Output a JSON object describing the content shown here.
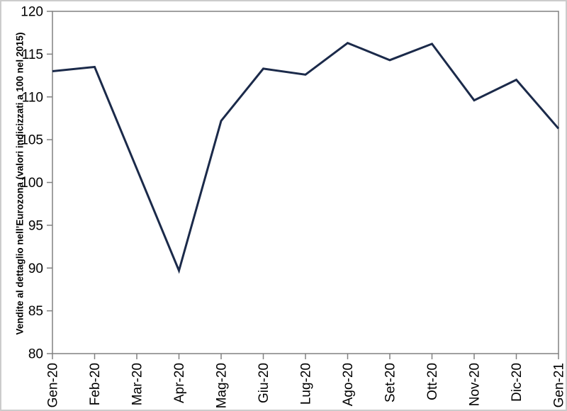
{
  "chart_data": {
    "type": "line",
    "title": "",
    "xlabel": "",
    "ylabel": "Vendite al dettaglio nell’Eurozona (valori indicizzati a 100 nel 2015)",
    "categories": [
      "Gen-20",
      "Feb-20",
      "Mar-20",
      "Apr-20",
      "Mag-20",
      "Giu-20",
      "Lug-20",
      "Ago-20",
      "Set-20",
      "Ott-20",
      "Nov-20",
      "Dic-20",
      "Gen-21"
    ],
    "values": [
      113.0,
      113.5,
      101.6,
      89.7,
      107.2,
      113.3,
      112.6,
      116.3,
      114.3,
      116.2,
      109.6,
      112.0,
      106.3
    ],
    "ylim": [
      80,
      120
    ],
    "yticks": [
      80,
      85,
      90,
      95,
      100,
      105,
      110,
      115,
      120
    ],
    "grid": false,
    "legend": "none",
    "line_color": "#1b2a4a",
    "axis_color": "#808080",
    "text_color": "#000000"
  }
}
